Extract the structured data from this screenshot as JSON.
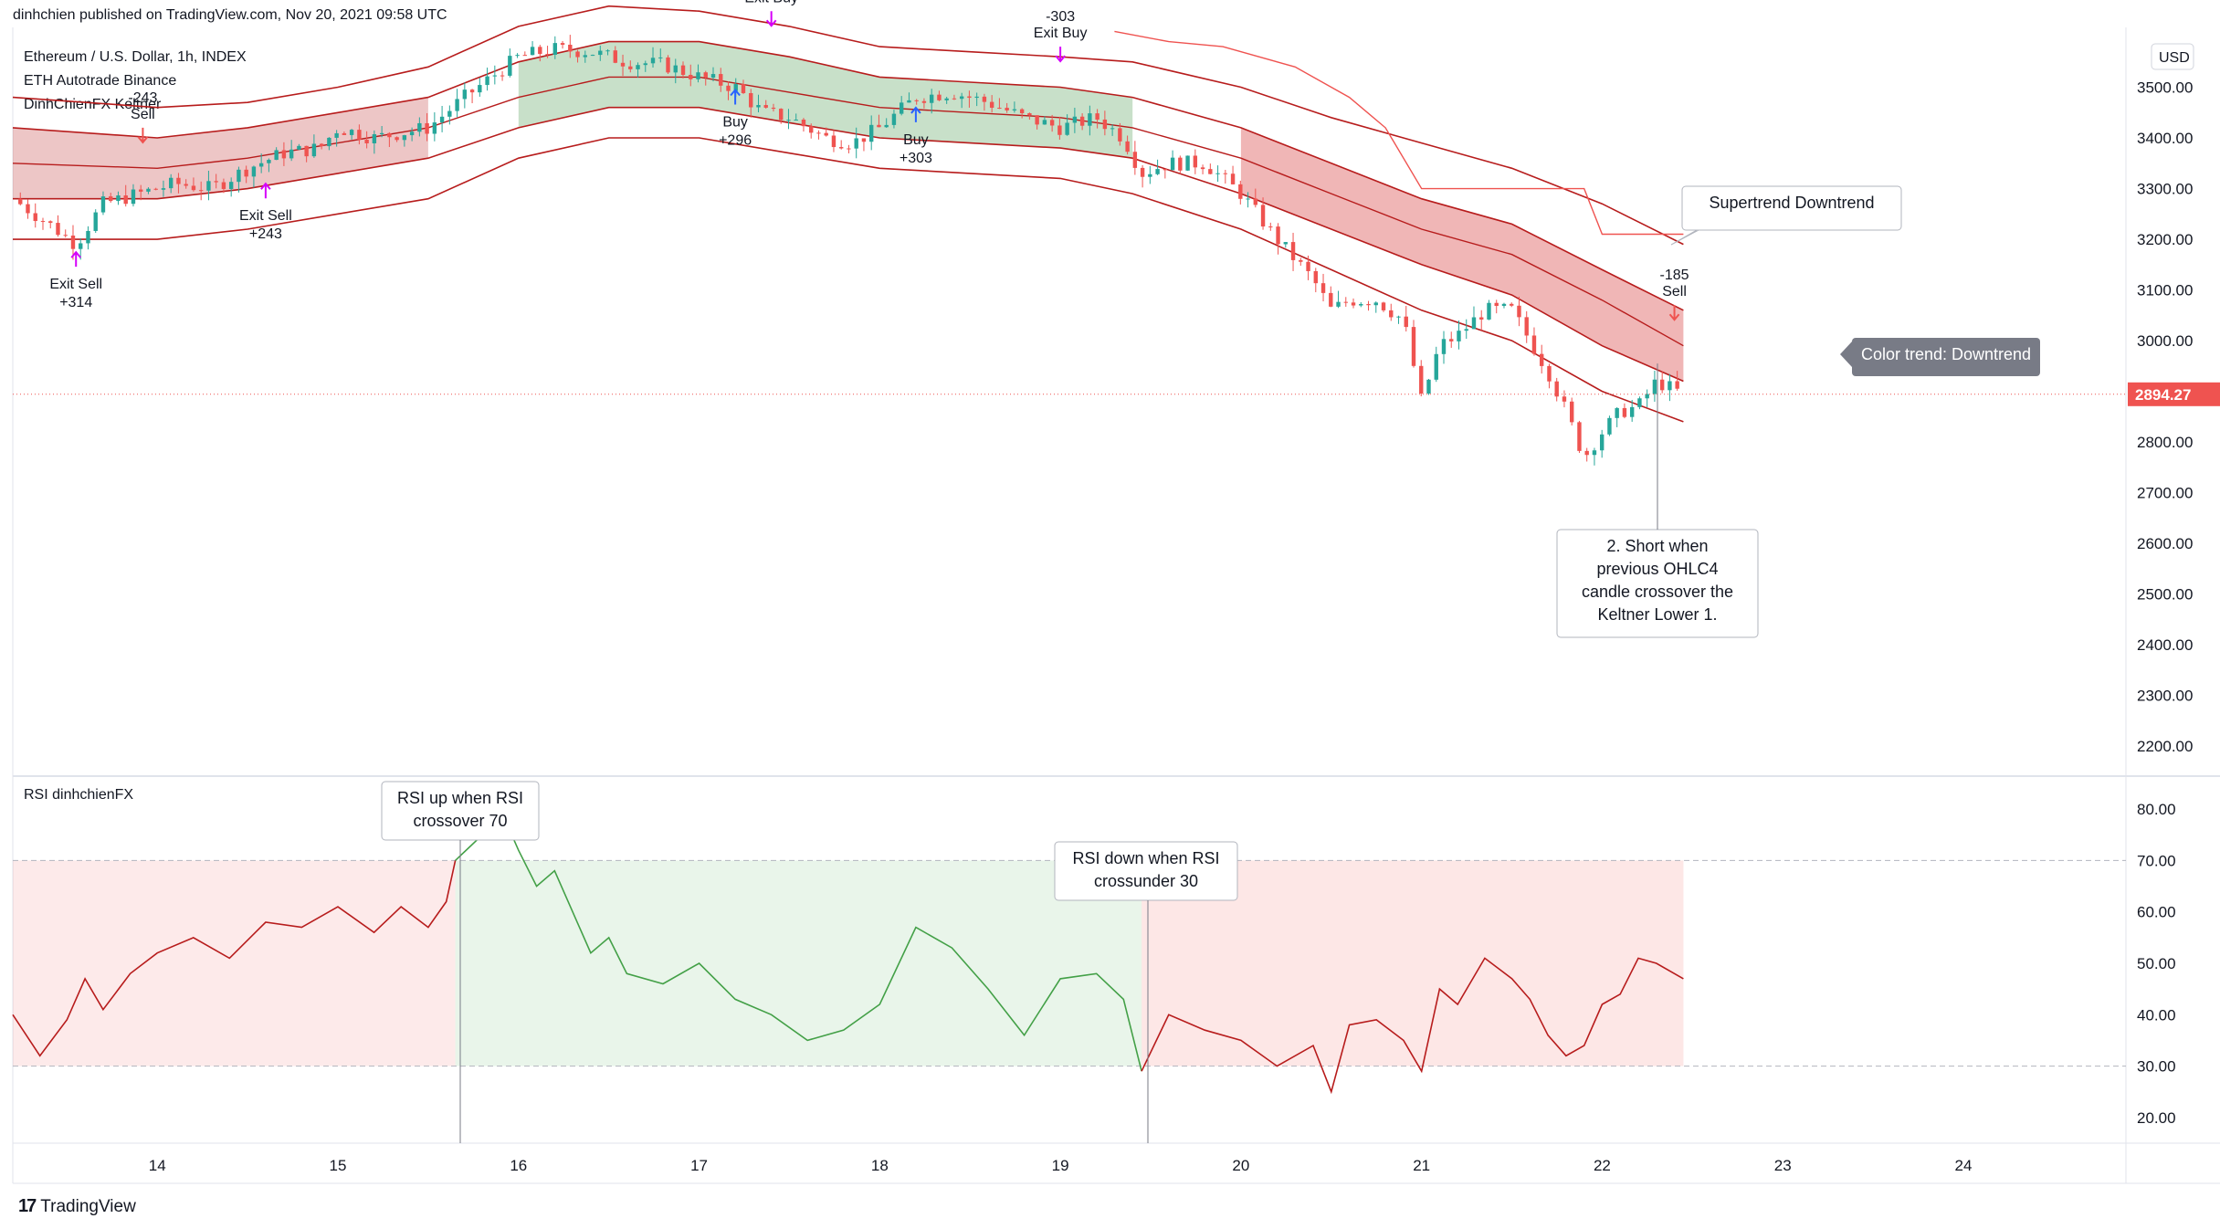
{
  "header": {
    "text": "dinhchien published on TradingView.com, Nov 20, 2021 09:58 UTC"
  },
  "legend": [
    "Ethereum / U.S. Dollar, 1h, INDEX",
    "ETH Autotrade Binance",
    "DinhChienFX Keltner"
  ],
  "rsi_legend": "RSI dinhchienFX",
  "currency": "USD",
  "last_price": "2894.27",
  "footer": {
    "brand": "TradingView"
  },
  "colors": {
    "bull": "#26a69a",
    "bear": "#ef5350",
    "keltner_band": "#b71c1c",
    "green_band": "#388e3c",
    "rsi_line_green": "#43a047",
    "rsi_line_red": "#b71c1c",
    "price_label": "#ef5350",
    "signal_magenta": "#d500f9",
    "signal_blue": "#2962ff"
  },
  "chart_data": [
    {
      "type": "candlestick",
      "title": "Ethereum / U.S. Dollar, 1h, INDEX",
      "ylim": [
        2150,
        3600
      ],
      "y_ticks": [
        2200,
        2300,
        2400,
        2500,
        2600,
        2700,
        2800,
        2900,
        3000,
        3100,
        3200,
        3300,
        3400,
        3500
      ],
      "x_ticks": [
        "14",
        "15",
        "16",
        "17",
        "18",
        "19",
        "20",
        "21",
        "22",
        "23",
        "24"
      ],
      "x_tick_days": [
        14,
        15,
        16,
        17,
        18,
        19,
        20,
        21,
        22,
        23,
        24
      ],
      "xlim_days": [
        13.2,
        24.9
      ],
      "close_path": [
        [
          13.2,
          3280
        ],
        [
          13.4,
          3230
        ],
        [
          13.55,
          3190
        ],
        [
          13.7,
          3270
        ],
        [
          13.9,
          3290
        ],
        [
          14.1,
          3310
        ],
        [
          14.3,
          3300
        ],
        [
          14.5,
          3340
        ],
        [
          14.7,
          3370
        ],
        [
          14.9,
          3380
        ],
        [
          15.0,
          3420
        ],
        [
          15.2,
          3400
        ],
        [
          15.35,
          3410
        ],
        [
          15.5,
          3420
        ],
        [
          15.7,
          3480
        ],
        [
          15.85,
          3520
        ],
        [
          16.0,
          3560
        ],
        [
          16.2,
          3575
        ],
        [
          16.4,
          3570
        ],
        [
          16.6,
          3550
        ],
        [
          16.8,
          3545
        ],
        [
          17.0,
          3520
        ],
        [
          17.2,
          3500
        ],
        [
          17.35,
          3450
        ],
        [
          17.5,
          3440
        ],
        [
          17.7,
          3400
        ],
        [
          17.85,
          3390
        ],
        [
          18.0,
          3420
        ],
        [
          18.2,
          3480
        ],
        [
          18.4,
          3490
        ],
        [
          18.6,
          3470
        ],
        [
          18.8,
          3440
        ],
        [
          19.0,
          3420
        ],
        [
          19.2,
          3440
        ],
        [
          19.35,
          3400
        ],
        [
          19.45,
          3330
        ],
        [
          19.6,
          3350
        ],
        [
          19.8,
          3350
        ],
        [
          20.0,
          3290
        ],
        [
          20.2,
          3200
        ],
        [
          20.4,
          3120
        ],
        [
          20.5,
          3060
        ],
        [
          20.6,
          3080
        ],
        [
          20.75,
          3080
        ],
        [
          20.9,
          3040
        ],
        [
          21.0,
          2880
        ],
        [
          21.1,
          2990
        ],
        [
          21.2,
          3010
        ],
        [
          21.35,
          3060
        ],
        [
          21.5,
          3060
        ],
        [
          21.6,
          3000
        ],
        [
          21.7,
          2940
        ],
        [
          21.8,
          2860
        ],
        [
          21.9,
          2770
        ],
        [
          22.0,
          2820
        ],
        [
          22.1,
          2860
        ],
        [
          22.2,
          2870
        ],
        [
          22.3,
          2920
        ],
        [
          22.45,
          2894
        ]
      ],
      "keltner_upper2_path": [
        [
          13.2,
          3480
        ],
        [
          14.0,
          3460
        ],
        [
          14.5,
          3470
        ],
        [
          15.0,
          3500
        ],
        [
          15.5,
          3540
        ],
        [
          16.0,
          3620
        ],
        [
          16.5,
          3660
        ],
        [
          17.0,
          3650
        ],
        [
          17.5,
          3620
        ],
        [
          18.0,
          3580
        ],
        [
          18.5,
          3570
        ],
        [
          19.0,
          3560
        ],
        [
          19.4,
          3550
        ],
        [
          20.0,
          3500
        ],
        [
          20.5,
          3440
        ],
        [
          21.0,
          3390
        ],
        [
          21.5,
          3340
        ],
        [
          22.0,
          3270
        ],
        [
          22.45,
          3190
        ]
      ],
      "keltner_upper1_path": [
        [
          13.2,
          3420
        ],
        [
          14.0,
          3400
        ],
        [
          14.5,
          3420
        ],
        [
          15.0,
          3450
        ],
        [
          15.5,
          3480
        ],
        [
          16.0,
          3550
        ],
        [
          16.5,
          3590
        ],
        [
          17.0,
          3590
        ],
        [
          17.5,
          3560
        ],
        [
          18.0,
          3520
        ],
        [
          18.5,
          3510
        ],
        [
          19.0,
          3500
        ],
        [
          19.4,
          3480
        ],
        [
          20.0,
          3420
        ],
        [
          20.5,
          3350
        ],
        [
          21.0,
          3280
        ],
        [
          21.5,
          3230
        ],
        [
          22.0,
          3140
        ],
        [
          22.45,
          3060
        ]
      ],
      "keltner_mid_path": [
        [
          13.2,
          3350
        ],
        [
          14.0,
          3340
        ],
        [
          14.5,
          3360
        ],
        [
          15.0,
          3390
        ],
        [
          15.5,
          3420
        ],
        [
          16.0,
          3480
        ],
        [
          16.5,
          3520
        ],
        [
          17.0,
          3520
        ],
        [
          17.5,
          3490
        ],
        [
          18.0,
          3460
        ],
        [
          18.5,
          3450
        ],
        [
          19.0,
          3440
        ],
        [
          19.4,
          3420
        ],
        [
          20.0,
          3360
        ],
        [
          20.5,
          3290
        ],
        [
          21.0,
          3220
        ],
        [
          21.5,
          3170
        ],
        [
          22.0,
          3080
        ],
        [
          22.45,
          2990
        ]
      ],
      "keltner_lower1_path": [
        [
          13.2,
          3280
        ],
        [
          14.0,
          3280
        ],
        [
          14.5,
          3300
        ],
        [
          15.0,
          3330
        ],
        [
          15.5,
          3360
        ],
        [
          16.0,
          3420
        ],
        [
          16.5,
          3460
        ],
        [
          17.0,
          3460
        ],
        [
          17.5,
          3430
        ],
        [
          18.0,
          3400
        ],
        [
          18.5,
          3390
        ],
        [
          19.0,
          3380
        ],
        [
          19.4,
          3360
        ],
        [
          20.0,
          3290
        ],
        [
          20.5,
          3220
        ],
        [
          21.0,
          3150
        ],
        [
          21.5,
          3090
        ],
        [
          22.0,
          2990
        ],
        [
          22.45,
          2920
        ]
      ],
      "keltner_lower2_path": [
        [
          13.2,
          3200
        ],
        [
          14.0,
          3200
        ],
        [
          14.5,
          3220
        ],
        [
          15.0,
          3250
        ],
        [
          15.5,
          3280
        ],
        [
          16.0,
          3360
        ],
        [
          16.5,
          3400
        ],
        [
          17.0,
          3400
        ],
        [
          17.5,
          3370
        ],
        [
          18.0,
          3340
        ],
        [
          18.5,
          3330
        ],
        [
          19.0,
          3320
        ],
        [
          19.4,
          3290
        ],
        [
          20.0,
          3220
        ],
        [
          20.5,
          3140
        ],
        [
          21.0,
          3060
        ],
        [
          21.5,
          3000
        ],
        [
          22.0,
          2900
        ],
        [
          22.45,
          2840
        ]
      ],
      "annotations": [
        {
          "text": "Exit Sell",
          "sub": "+314"
        },
        {
          "text": "Sell",
          "sub": "-243"
        },
        {
          "text": "Exit Sell",
          "sub": "+243"
        },
        {
          "text": "Exit Buy",
          "sub": ""
        },
        {
          "text": "Buy",
          "sub": "+296"
        },
        {
          "text": "Buy",
          "sub": "+303"
        },
        {
          "text": "Exit Buy",
          "sub": "-303"
        },
        {
          "text": "Sell",
          "sub": "-185"
        }
      ],
      "callouts": [
        {
          "text": "Supertrend Downtrend"
        },
        {
          "text": "Color trend: Downtrend"
        },
        {
          "lines": [
            "2. Short when",
            "previous OHLC4",
            "candle crossover the",
            "Keltner Lower 1."
          ]
        }
      ],
      "last_price": 2894.27
    },
    {
      "type": "line",
      "title": "RSI dinhchienFX",
      "ylim": [
        15,
        85
      ],
      "y_ticks": [
        "20.00",
        "30.00",
        "40.00",
        "50.00",
        "60.00",
        "70.00",
        "80.00"
      ],
      "y_tick_values": [
        20,
        30,
        40,
        50,
        60,
        70,
        80
      ],
      "overbought": 70,
      "oversold": 30,
      "rsi_path": [
        [
          13.2,
          40
        ],
        [
          13.35,
          32
        ],
        [
          13.5,
          39
        ],
        [
          13.6,
          47
        ],
        [
          13.7,
          41
        ],
        [
          13.85,
          48
        ],
        [
          14.0,
          52
        ],
        [
          14.2,
          55
        ],
        [
          14.4,
          51
        ],
        [
          14.6,
          58
        ],
        [
          14.8,
          57
        ],
        [
          15.0,
          61
        ],
        [
          15.2,
          56
        ],
        [
          15.35,
          61
        ],
        [
          15.5,
          57
        ],
        [
          15.6,
          62
        ],
        [
          15.65,
          70
        ],
        [
          15.8,
          75
        ],
        [
          15.9,
          80
        ],
        [
          16.0,
          72
        ],
        [
          16.1,
          65
        ],
        [
          16.2,
          68
        ],
        [
          16.4,
          52
        ],
        [
          16.5,
          55
        ],
        [
          16.6,
          48
        ],
        [
          16.8,
          46
        ],
        [
          17.0,
          50
        ],
        [
          17.2,
          43
        ],
        [
          17.4,
          40
        ],
        [
          17.6,
          35
        ],
        [
          17.8,
          37
        ],
        [
          18.0,
          42
        ],
        [
          18.2,
          57
        ],
        [
          18.4,
          53
        ],
        [
          18.6,
          45
        ],
        [
          18.8,
          36
        ],
        [
          19.0,
          47
        ],
        [
          19.2,
          48
        ],
        [
          19.35,
          43
        ],
        [
          19.45,
          29
        ],
        [
          19.6,
          40
        ],
        [
          19.8,
          37
        ],
        [
          20.0,
          35
        ],
        [
          20.2,
          30
        ],
        [
          20.4,
          34
        ],
        [
          20.5,
          25
        ],
        [
          20.6,
          38
        ],
        [
          20.75,
          39
        ],
        [
          20.9,
          35
        ],
        [
          21.0,
          29
        ],
        [
          21.1,
          45
        ],
        [
          21.2,
          42
        ],
        [
          21.35,
          51
        ],
        [
          21.5,
          47
        ],
        [
          21.6,
          43
        ],
        [
          21.7,
          36
        ],
        [
          21.8,
          32
        ],
        [
          21.9,
          34
        ],
        [
          22.0,
          42
        ],
        [
          22.1,
          44
        ],
        [
          22.2,
          51
        ],
        [
          22.3,
          50
        ],
        [
          22.45,
          47
        ]
      ],
      "callouts": [
        {
          "lines": [
            "RSI up when RSI",
            "crossover 70"
          ]
        },
        {
          "lines": [
            "RSI down when RSI",
            "crossunder 30"
          ]
        }
      ]
    }
  ]
}
